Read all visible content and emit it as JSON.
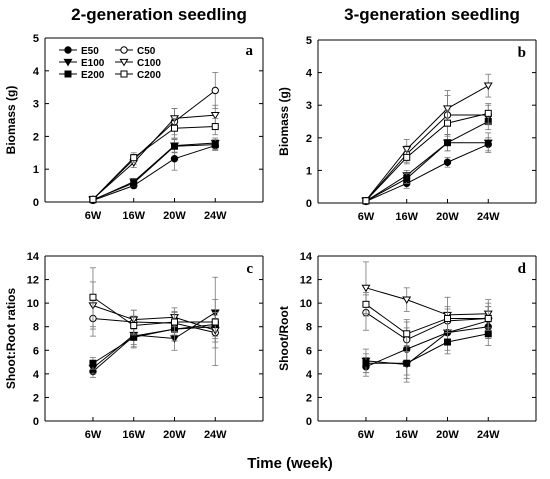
{
  "figure": {
    "xlabel": "Time (week)"
  },
  "chart_data": [
    {
      "type": "line",
      "panel": "a",
      "title": "2-generation seedling",
      "ylabel": "Biomass (g)",
      "categories": [
        "6W",
        "16W",
        "20W",
        "24W"
      ],
      "ylim": [
        0,
        5
      ],
      "yticks": [
        0,
        1,
        2,
        3,
        4,
        5
      ],
      "legend": [
        "E50",
        "E100",
        "E200",
        "C50",
        "C100",
        "C200"
      ],
      "series": [
        {
          "name": "E50",
          "values": [
            0.05,
            0.5,
            1.32,
            1.72
          ],
          "err": [
            0.02,
            0.08,
            0.35,
            0.15
          ]
        },
        {
          "name": "E100",
          "values": [
            0.06,
            0.62,
            1.72,
            1.8
          ],
          "err": [
            0.02,
            0.1,
            0.2,
            0.15
          ]
        },
        {
          "name": "E200",
          "values": [
            0.07,
            0.58,
            1.7,
            1.75
          ],
          "err": [
            0.02,
            0.1,
            0.2,
            0.15
          ]
        },
        {
          "name": "C50",
          "values": [
            0.08,
            1.3,
            2.45,
            3.4
          ],
          "err": [
            0.03,
            0.15,
            0.4,
            0.55
          ]
        },
        {
          "name": "C100",
          "values": [
            0.09,
            1.2,
            2.55,
            2.65
          ],
          "err": [
            0.03,
            0.15,
            0.3,
            0.3
          ]
        },
        {
          "name": "C200",
          "values": [
            0.08,
            1.35,
            2.25,
            2.3
          ],
          "err": [
            0.03,
            0.15,
            0.3,
            0.25
          ]
        }
      ]
    },
    {
      "type": "line",
      "panel": "b",
      "title": "3-generation seedling",
      "ylabel": "Biomass (g)",
      "categories": [
        "6W",
        "16W",
        "20W",
        "24W"
      ],
      "ylim": [
        0,
        5
      ],
      "yticks": [
        0,
        1,
        2,
        3,
        4,
        5
      ],
      "series": [
        {
          "name": "E50",
          "values": [
            0.05,
            0.6,
            1.25,
            1.8
          ],
          "err": [
            0.02,
            0.15,
            0.15,
            0.2
          ]
        },
        {
          "name": "E100",
          "values": [
            0.06,
            0.85,
            1.85,
            1.85
          ],
          "err": [
            0.02,
            0.15,
            0.25,
            0.3
          ]
        },
        {
          "name": "E200",
          "values": [
            0.06,
            0.75,
            1.85,
            2.5
          ],
          "err": [
            0.02,
            0.15,
            0.25,
            0.25
          ]
        },
        {
          "name": "C50",
          "values": [
            0.07,
            1.5,
            2.7,
            2.7
          ],
          "err": [
            0.02,
            0.25,
            0.6,
            0.3
          ]
        },
        {
          "name": "C100",
          "values": [
            0.08,
            1.65,
            2.9,
            3.6
          ],
          "err": [
            0.02,
            0.3,
            0.55,
            0.35
          ]
        },
        {
          "name": "C200",
          "values": [
            0.07,
            1.4,
            2.45,
            2.75
          ],
          "err": [
            0.02,
            0.2,
            0.4,
            0.3
          ]
        }
      ]
    },
    {
      "type": "line",
      "panel": "c",
      "ylabel": "Shoot:Root ratios",
      "categories": [
        "6W",
        "16W",
        "20W",
        "24W"
      ],
      "ylim": [
        0,
        14
      ],
      "yticks": [
        0,
        2,
        4,
        6,
        8,
        10,
        12,
        14
      ],
      "series": [
        {
          "name": "E50",
          "values": [
            4.2,
            7.2,
            7.8,
            8.0
          ],
          "err": [
            0.5,
            1.0,
            1.0,
            1.0
          ]
        },
        {
          "name": "E100",
          "values": [
            4.5,
            7.3,
            7.0,
            9.2
          ],
          "err": [
            0.5,
            0.8,
            1.0,
            3.0
          ]
        },
        {
          "name": "E200",
          "values": [
            4.9,
            7.1,
            7.8,
            8.2
          ],
          "err": [
            0.5,
            0.8,
            1.0,
            1.0
          ]
        },
        {
          "name": "C50",
          "values": [
            8.7,
            8.4,
            8.3,
            7.5
          ],
          "err": [
            1.5,
            1.0,
            1.0,
            2.8
          ]
        },
        {
          "name": "C100",
          "values": [
            9.8,
            8.6,
            8.8,
            7.7
          ],
          "err": [
            2.0,
            0.8,
            0.8,
            1.0
          ]
        },
        {
          "name": "C200",
          "values": [
            10.5,
            8.1,
            8.4,
            8.4
          ],
          "err": [
            2.5,
            0.8,
            0.8,
            0.8
          ]
        }
      ]
    },
    {
      "type": "line",
      "panel": "d",
      "ylabel": "Shoot/Root",
      "categories": [
        "6W",
        "16W",
        "20W",
        "24W"
      ],
      "ylim": [
        0,
        14
      ],
      "yticks": [
        0,
        2,
        4,
        6,
        8,
        10,
        12,
        14
      ],
      "series": [
        {
          "name": "E50",
          "values": [
            4.6,
            6.1,
            7.5,
            8.0
          ],
          "err": [
            0.8,
            2.5,
            1.5,
            1.0
          ]
        },
        {
          "name": "E100",
          "values": [
            5.1,
            4.8,
            7.5,
            8.5
          ],
          "err": [
            1.0,
            1.5,
            1.0,
            1.5
          ]
        },
        {
          "name": "E200",
          "values": [
            4.9,
            4.9,
            6.7,
            7.4
          ],
          "err": [
            0.8,
            1.0,
            1.0,
            1.0
          ]
        },
        {
          "name": "C50",
          "values": [
            9.2,
            6.9,
            8.5,
            8.7
          ],
          "err": [
            1.5,
            1.0,
            1.0,
            1.0
          ]
        },
        {
          "name": "C100",
          "values": [
            11.3,
            10.3,
            9.0,
            9.1
          ],
          "err": [
            2.2,
            1.0,
            1.5,
            1.2
          ]
        },
        {
          "name": "C200",
          "values": [
            9.9,
            7.4,
            8.7,
            8.7
          ],
          "err": [
            1.0,
            1.0,
            1.0,
            1.0
          ]
        }
      ]
    }
  ]
}
